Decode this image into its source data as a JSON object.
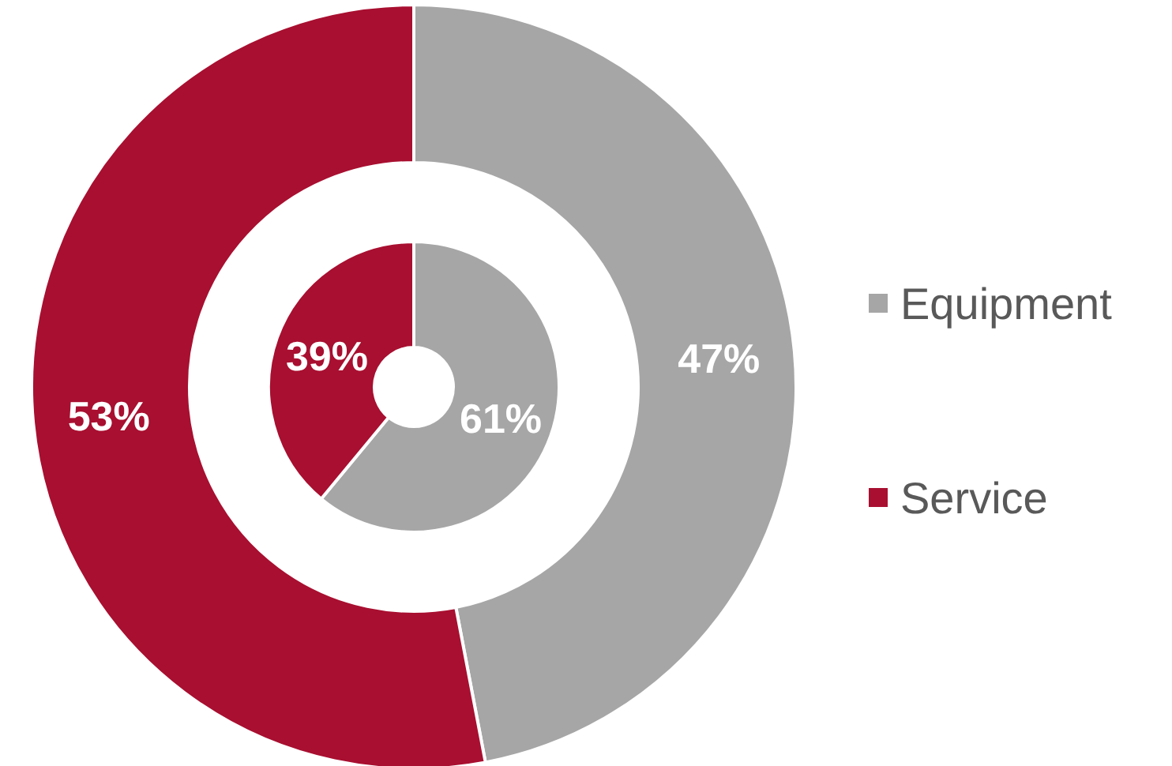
{
  "chart_data": {
    "type": "donut",
    "categories": [
      "Equipment",
      "Service"
    ],
    "colors": [
      "#a6a6a6",
      "#a80f30"
    ],
    "series": [
      {
        "values": [
          47,
          53
        ],
        "value_labels": [
          "47%",
          "53%"
        ]
      },
      {
        "values": [
          61,
          39
        ],
        "value_labels": [
          "61%",
          "39%"
        ]
      }
    ],
    "legend": "right"
  }
}
